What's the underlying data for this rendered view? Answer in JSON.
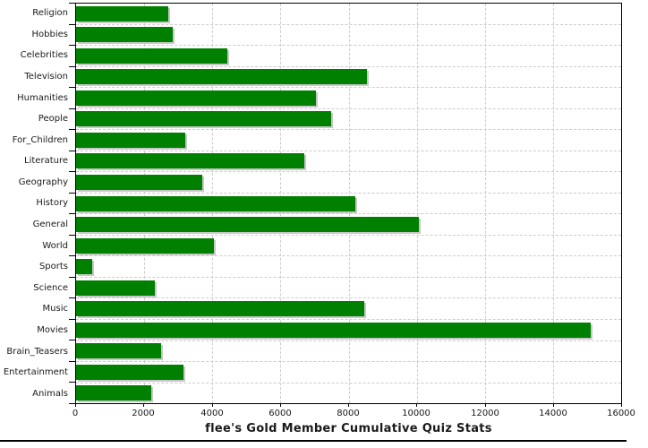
{
  "title": "flee's Gold Member Cumulative Quiz Stats",
  "colors": {
    "bar": "#008000",
    "bar_shadow": "#c8c8c8",
    "grid": "#cccccc",
    "axis": "#000000",
    "background": "#ffffff",
    "text": "#1a1a1a"
  },
  "chart_data": {
    "type": "bar",
    "orientation": "horizontal",
    "title": "flee's Gold Member Cumulative Quiz Stats",
    "categories": [
      "Religion",
      "Hobbies",
      "Celebrities",
      "Television",
      "Humanities",
      "People",
      "For_Children",
      "Literature",
      "Geography",
      "History",
      "General",
      "World",
      "Sports",
      "Science",
      "Music",
      "Movies",
      "Brain_Teasers",
      "Entertainment",
      "Animals"
    ],
    "values": [
      2700,
      2850,
      4450,
      8550,
      7050,
      7500,
      3200,
      6700,
      3700,
      8200,
      10050,
      4050,
      470,
      2300,
      8450,
      15100,
      2500,
      3150,
      2200
    ],
    "xlabel": "",
    "ylabel": "",
    "xlim": [
      0,
      16000
    ],
    "xticks": [
      0,
      2000,
      4000,
      6000,
      8000,
      10000,
      12000,
      14000,
      16000
    ],
    "grid": true,
    "legend": false,
    "bar_color": "#008000"
  }
}
